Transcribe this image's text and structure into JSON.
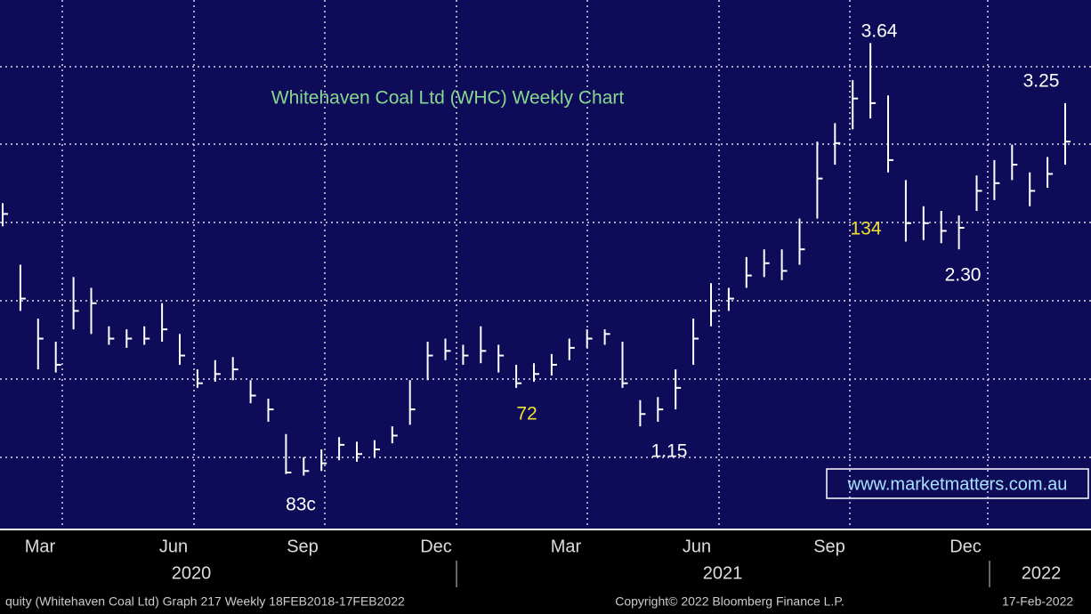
{
  "chart_data": {
    "type": "ohlc",
    "title": "Whitehaven Coal Ltd (WHC) Weekly Chart",
    "watermark": "www.marketmatters.com.au",
    "ylim": [
      0.48,
      3.92
    ],
    "close": [
      2.53,
      1.98,
      1.72,
      1.55,
      1.9,
      1.95,
      1.72,
      1.72,
      1.72,
      1.78,
      1.61,
      1.43,
      1.49,
      1.52,
      1.35,
      1.26,
      0.85,
      0.86,
      0.91,
      1.03,
      0.97,
      1.0,
      1.09,
      1.26,
      1.61,
      1.64,
      1.61,
      1.64,
      1.61,
      1.43,
      1.49,
      1.55,
      1.66,
      1.72,
      1.75,
      1.43,
      1.23,
      1.26,
      1.4,
      1.72,
      1.9,
      1.98,
      2.13,
      2.21,
      2.16,
      2.3,
      2.76,
      2.99,
      3.28,
      3.25,
      2.88,
      2.47,
      2.47,
      2.42,
      2.44,
      2.68,
      2.73,
      2.85,
      2.68,
      2.79,
      3.0
    ],
    "high": [
      2.6,
      2.2,
      1.85,
      1.7,
      2.12,
      2.05,
      1.8,
      1.78,
      1.8,
      1.95,
      1.75,
      1.52,
      1.58,
      1.6,
      1.45,
      1.33,
      1.1,
      0.95,
      1.0,
      1.08,
      1.05,
      1.06,
      1.15,
      1.45,
      1.7,
      1.72,
      1.68,
      1.8,
      1.68,
      1.55,
      1.56,
      1.62,
      1.72,
      1.78,
      1.78,
      1.7,
      1.32,
      1.34,
      1.52,
      1.85,
      2.08,
      2.05,
      2.25,
      2.3,
      2.3,
      2.5,
      3.0,
      3.12,
      3.4,
      3.64,
      3.3,
      2.75,
      2.58,
      2.55,
      2.52,
      2.78,
      2.88,
      2.98,
      2.8,
      2.9,
      3.25
    ],
    "low": [
      2.45,
      1.9,
      1.52,
      1.5,
      1.78,
      1.75,
      1.68,
      1.66,
      1.68,
      1.7,
      1.55,
      1.4,
      1.44,
      1.45,
      1.3,
      1.18,
      0.84,
      0.83,
      0.86,
      0.93,
      0.92,
      0.95,
      1.04,
      1.16,
      1.45,
      1.58,
      1.55,
      1.56,
      1.5,
      1.4,
      1.44,
      1.48,
      1.58,
      1.66,
      1.68,
      1.4,
      1.15,
      1.18,
      1.26,
      1.55,
      1.8,
      1.9,
      2.05,
      2.12,
      2.1,
      2.2,
      2.5,
      2.85,
      3.08,
      3.15,
      2.8,
      2.35,
      2.36,
      2.34,
      2.3,
      2.55,
      2.62,
      2.75,
      2.58,
      2.7,
      2.85
    ],
    "month_labels": [
      "Mar",
      "Jun",
      "Sep",
      "Dec",
      "Mar",
      "Jun",
      "Sep",
      "Dec"
    ],
    "year_labels": [
      "2020",
      "2021",
      "2022"
    ],
    "annotations": [
      "3.64",
      "3.25",
      "2.30",
      "1.15",
      "83c",
      "72",
      "134"
    ],
    "footer": {
      "left": "quity (Whitehaven Coal Ltd) Graph 217  Weekly 18FEB2018-17FEB2022",
      "center": "Copyright© 2022 Bloomberg Finance L.P.",
      "right": "17-Feb-2022"
    }
  }
}
